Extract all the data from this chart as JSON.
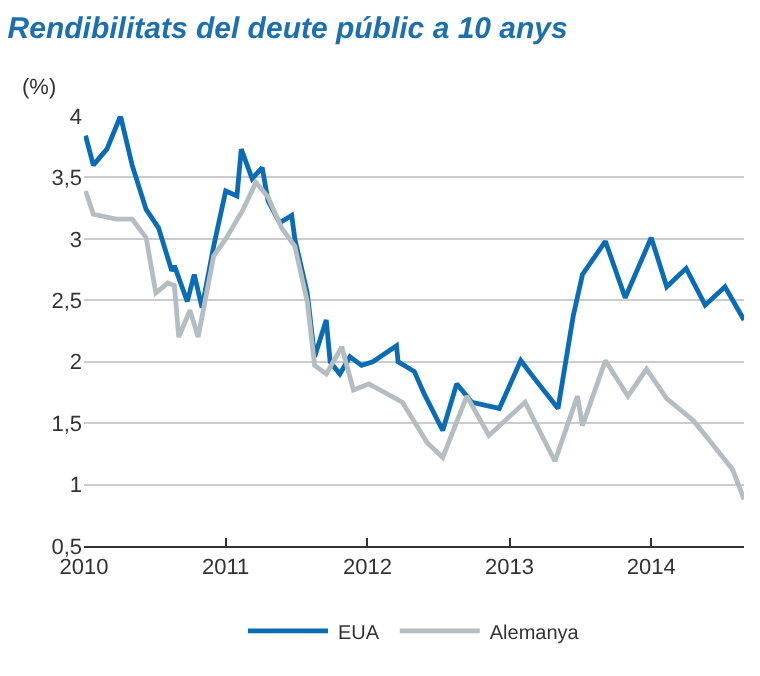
{
  "chart_data": {
    "type": "line",
    "title": "Rendibilitats del deute públic a 10 anys",
    "ylabel": "(%)",
    "xlim": [
      "2010-01-01",
      "2014-08-28"
    ],
    "xticks": [
      {
        "value": "2010-01-01",
        "label": "2010"
      },
      {
        "value": "2011-01-01",
        "label": "2011"
      },
      {
        "value": "2012-01-01",
        "label": "2012"
      },
      {
        "value": "2013-01-01",
        "label": "2013"
      },
      {
        "value": "2014-01-01",
        "label": "2014"
      }
    ],
    "ylim": [
      0.5,
      4
    ],
    "yticks": [
      {
        "value": 0.5,
        "label": "0,5"
      },
      1,
      {
        "value": 1.5,
        "label": "1,5"
      },
      2,
      {
        "value": 2.5,
        "label": "2,5"
      },
      3,
      {
        "value": 3.5,
        "label": "3,5"
      },
      4
    ],
    "grid": "y",
    "legend": "bottom",
    "marker": "none",
    "line_style": "solid",
    "series": [
      {
        "name": "EUA",
        "color": "#0a6cb4",
        "x": [
          "2010-01-05",
          "2010-01-25",
          "2010-03-01",
          "2010-04-05",
          "2010-05-05",
          "2010-06-10",
          "2010-07-12",
          "2010-08-15",
          "2010-08-22",
          "2010-09-24",
          "2010-10-12",
          "2010-11-01",
          "2010-12-01",
          "2011-01-01",
          "2011-01-30",
          "2011-02-10",
          "2011-03-10",
          "2011-04-05",
          "2011-04-20",
          "2011-05-20",
          "2011-06-20",
          "2011-06-28",
          "2011-07-30",
          "2011-08-18",
          "2011-09-17",
          "2011-09-27",
          "2011-10-22",
          "2011-11-17",
          "2011-12-17",
          "2012-01-15",
          "2012-03-16",
          "2012-03-20",
          "2012-05-01",
          "2012-05-26",
          "2012-07-13",
          "2012-08-18",
          "2012-09-26",
          "2012-12-06",
          "2013-01-30",
          "2013-03-07",
          "2013-05-06",
          "2013-06-14",
          "2013-07-08",
          "2013-09-05",
          "2013-10-26",
          "2014-01-01",
          "2014-02-10",
          "2014-04-01",
          "2014-05-20",
          "2014-07-10",
          "2014-08-28"
        ],
        "values": [
          3.84,
          3.6,
          3.73,
          4.0,
          3.6,
          3.24,
          3.09,
          2.74,
          2.78,
          2.49,
          2.71,
          2.44,
          2.94,
          3.39,
          3.35,
          3.73,
          3.49,
          3.58,
          3.31,
          3.13,
          3.19,
          3.0,
          2.56,
          2.04,
          2.34,
          2.0,
          1.9,
          2.04,
          1.97,
          2.0,
          2.13,
          2.0,
          1.92,
          1.74,
          1.44,
          1.82,
          1.67,
          1.62,
          2.01,
          1.86,
          1.62,
          2.37,
          2.71,
          2.98,
          2.52,
          3.01,
          2.61,
          2.76,
          2.46,
          2.61,
          2.34
        ]
      },
      {
        "name": "Alemanya",
        "color": "#b4bec2",
        "x": [
          "2010-01-05",
          "2010-01-25",
          "2010-03-25",
          "2010-05-05",
          "2010-06-10",
          "2010-07-05",
          "2010-08-05",
          "2010-08-22",
          "2010-09-02",
          "2010-10-01",
          "2010-10-22",
          "2010-12-01",
          "2011-01-01",
          "2011-02-15",
          "2011-03-20",
          "2011-04-20",
          "2011-05-25",
          "2011-06-28",
          "2011-07-30",
          "2011-08-18",
          "2011-09-17",
          "2011-10-27",
          "2011-11-26",
          "2012-01-05",
          "2012-03-31",
          "2012-06-03",
          "2012-07-13",
          "2012-09-13",
          "2012-11-09",
          "2013-02-10",
          "2013-04-28",
          "2013-06-25",
          "2013-07-08",
          "2013-09-05",
          "2013-11-02",
          "2013-12-20",
          "2014-02-10",
          "2014-04-20",
          "2014-06-10",
          "2014-07-30",
          "2014-08-28"
        ],
        "values": [
          3.39,
          3.2,
          3.16,
          3.16,
          3.01,
          2.56,
          2.64,
          2.62,
          2.2,
          2.42,
          2.2,
          2.86,
          3.0,
          3.24,
          3.46,
          3.34,
          3.09,
          2.94,
          2.49,
          1.97,
          1.9,
          2.12,
          1.77,
          1.82,
          1.67,
          1.34,
          1.22,
          1.72,
          1.4,
          1.67,
          1.19,
          1.72,
          1.48,
          2.01,
          1.72,
          1.94,
          1.7,
          1.52,
          1.32,
          1.12,
          0.88
        ]
      }
    ]
  }
}
